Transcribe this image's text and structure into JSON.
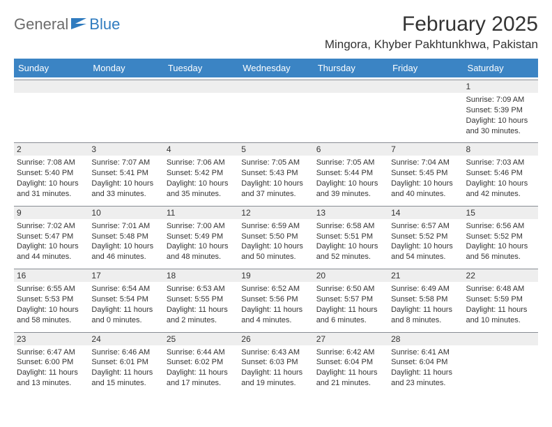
{
  "logo": {
    "part1": "General",
    "part2": "Blue"
  },
  "title": "February 2025",
  "location": "Mingora, Khyber Pakhtunkhwa, Pakistan",
  "colors": {
    "header_bg": "#3b84c4",
    "header_text": "#ffffff",
    "daynum_bg": "#eeeeee",
    "daynum_border": "#888c93",
    "text": "#333333",
    "logo_gray": "#6b6b6b",
    "logo_blue": "#2f7bbf"
  },
  "day_names": [
    "Sunday",
    "Monday",
    "Tuesday",
    "Wednesday",
    "Thursday",
    "Friday",
    "Saturday"
  ],
  "weeks": [
    [
      {
        "empty": true
      },
      {
        "empty": true
      },
      {
        "empty": true
      },
      {
        "empty": true
      },
      {
        "empty": true
      },
      {
        "empty": true
      },
      {
        "n": "1",
        "sunrise": "Sunrise: 7:09 AM",
        "sunset": "Sunset: 5:39 PM",
        "day": "Daylight: 10 hours and 30 minutes."
      }
    ],
    [
      {
        "n": "2",
        "sunrise": "Sunrise: 7:08 AM",
        "sunset": "Sunset: 5:40 PM",
        "day": "Daylight: 10 hours and 31 minutes."
      },
      {
        "n": "3",
        "sunrise": "Sunrise: 7:07 AM",
        "sunset": "Sunset: 5:41 PM",
        "day": "Daylight: 10 hours and 33 minutes."
      },
      {
        "n": "4",
        "sunrise": "Sunrise: 7:06 AM",
        "sunset": "Sunset: 5:42 PM",
        "day": "Daylight: 10 hours and 35 minutes."
      },
      {
        "n": "5",
        "sunrise": "Sunrise: 7:05 AM",
        "sunset": "Sunset: 5:43 PM",
        "day": "Daylight: 10 hours and 37 minutes."
      },
      {
        "n": "6",
        "sunrise": "Sunrise: 7:05 AM",
        "sunset": "Sunset: 5:44 PM",
        "day": "Daylight: 10 hours and 39 minutes."
      },
      {
        "n": "7",
        "sunrise": "Sunrise: 7:04 AM",
        "sunset": "Sunset: 5:45 PM",
        "day": "Daylight: 10 hours and 40 minutes."
      },
      {
        "n": "8",
        "sunrise": "Sunrise: 7:03 AM",
        "sunset": "Sunset: 5:46 PM",
        "day": "Daylight: 10 hours and 42 minutes."
      }
    ],
    [
      {
        "n": "9",
        "sunrise": "Sunrise: 7:02 AM",
        "sunset": "Sunset: 5:47 PM",
        "day": "Daylight: 10 hours and 44 minutes."
      },
      {
        "n": "10",
        "sunrise": "Sunrise: 7:01 AM",
        "sunset": "Sunset: 5:48 PM",
        "day": "Daylight: 10 hours and 46 minutes."
      },
      {
        "n": "11",
        "sunrise": "Sunrise: 7:00 AM",
        "sunset": "Sunset: 5:49 PM",
        "day": "Daylight: 10 hours and 48 minutes."
      },
      {
        "n": "12",
        "sunrise": "Sunrise: 6:59 AM",
        "sunset": "Sunset: 5:50 PM",
        "day": "Daylight: 10 hours and 50 minutes."
      },
      {
        "n": "13",
        "sunrise": "Sunrise: 6:58 AM",
        "sunset": "Sunset: 5:51 PM",
        "day": "Daylight: 10 hours and 52 minutes."
      },
      {
        "n": "14",
        "sunrise": "Sunrise: 6:57 AM",
        "sunset": "Sunset: 5:52 PM",
        "day": "Daylight: 10 hours and 54 minutes."
      },
      {
        "n": "15",
        "sunrise": "Sunrise: 6:56 AM",
        "sunset": "Sunset: 5:52 PM",
        "day": "Daylight: 10 hours and 56 minutes."
      }
    ],
    [
      {
        "n": "16",
        "sunrise": "Sunrise: 6:55 AM",
        "sunset": "Sunset: 5:53 PM",
        "day": "Daylight: 10 hours and 58 minutes."
      },
      {
        "n": "17",
        "sunrise": "Sunrise: 6:54 AM",
        "sunset": "Sunset: 5:54 PM",
        "day": "Daylight: 11 hours and 0 minutes."
      },
      {
        "n": "18",
        "sunrise": "Sunrise: 6:53 AM",
        "sunset": "Sunset: 5:55 PM",
        "day": "Daylight: 11 hours and 2 minutes."
      },
      {
        "n": "19",
        "sunrise": "Sunrise: 6:52 AM",
        "sunset": "Sunset: 5:56 PM",
        "day": "Daylight: 11 hours and 4 minutes."
      },
      {
        "n": "20",
        "sunrise": "Sunrise: 6:50 AM",
        "sunset": "Sunset: 5:57 PM",
        "day": "Daylight: 11 hours and 6 minutes."
      },
      {
        "n": "21",
        "sunrise": "Sunrise: 6:49 AM",
        "sunset": "Sunset: 5:58 PM",
        "day": "Daylight: 11 hours and 8 minutes."
      },
      {
        "n": "22",
        "sunrise": "Sunrise: 6:48 AM",
        "sunset": "Sunset: 5:59 PM",
        "day": "Daylight: 11 hours and 10 minutes."
      }
    ],
    [
      {
        "n": "23",
        "sunrise": "Sunrise: 6:47 AM",
        "sunset": "Sunset: 6:00 PM",
        "day": "Daylight: 11 hours and 13 minutes."
      },
      {
        "n": "24",
        "sunrise": "Sunrise: 6:46 AM",
        "sunset": "Sunset: 6:01 PM",
        "day": "Daylight: 11 hours and 15 minutes."
      },
      {
        "n": "25",
        "sunrise": "Sunrise: 6:44 AM",
        "sunset": "Sunset: 6:02 PM",
        "day": "Daylight: 11 hours and 17 minutes."
      },
      {
        "n": "26",
        "sunrise": "Sunrise: 6:43 AM",
        "sunset": "Sunset: 6:03 PM",
        "day": "Daylight: 11 hours and 19 minutes."
      },
      {
        "n": "27",
        "sunrise": "Sunrise: 6:42 AM",
        "sunset": "Sunset: 6:04 PM",
        "day": "Daylight: 11 hours and 21 minutes."
      },
      {
        "n": "28",
        "sunrise": "Sunrise: 6:41 AM",
        "sunset": "Sunset: 6:04 PM",
        "day": "Daylight: 11 hours and 23 minutes."
      },
      {
        "empty": true
      }
    ]
  ]
}
